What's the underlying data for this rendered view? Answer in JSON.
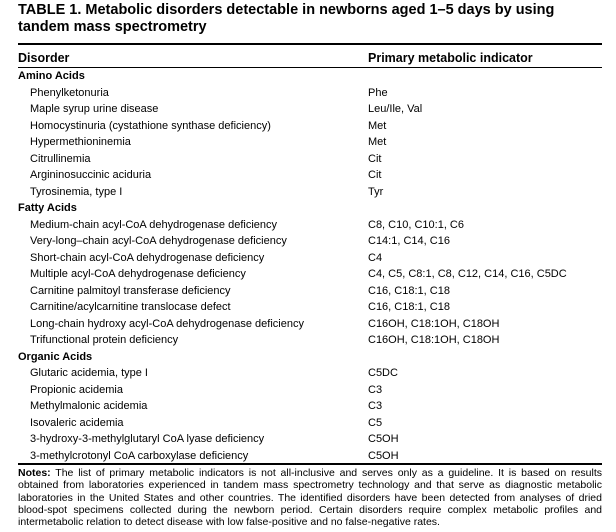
{
  "title": "TABLE 1. Metabolic disorders detectable in newborns aged 1–5 days by using tandem mass spectrometry",
  "columns": [
    "Disorder",
    "Primary metabolic indicator"
  ],
  "groups": [
    {
      "name": "Amino Acids",
      "rows": [
        [
          "Phenylketonuria",
          "Phe"
        ],
        [
          "Maple syrup urine disease",
          "Leu/Ile, Val"
        ],
        [
          "Homocystinuria (cystathione synthase deficiency)",
          "Met"
        ],
        [
          "Hypermethioninemia",
          "Met"
        ],
        [
          "Citrullinemia",
          "Cit"
        ],
        [
          "Argininosuccinic aciduria",
          "Cit"
        ],
        [
          "Tyrosinemia, type I",
          "Tyr"
        ]
      ]
    },
    {
      "name": "Fatty Acids",
      "rows": [
        [
          "Medium-chain acyl-CoA dehydrogenase deficiency",
          "C8, C10, C10:1, C6"
        ],
        [
          "Very-long–chain acyl-CoA dehydrogenase deficiency",
          "C14:1, C14, C16"
        ],
        [
          "Short-chain acyl-CoA dehydrogenase deficiency",
          "C4"
        ],
        [
          "Multiple acyl-CoA dehydrogenase deficiency",
          "C4, C5, C8:1, C8, C12, C14, C16, C5DC"
        ],
        [
          "Carnitine palmitoyl transferase deficiency",
          "C16, C18:1, C18"
        ],
        [
          "Carnitine/acylcarnitine translocase defect",
          "C16, C18:1, C18"
        ],
        [
          "Long-chain hydroxy acyl-CoA dehydrogenase deficiency",
          "C16OH, C18:1OH, C18OH"
        ],
        [
          "Trifunctional protein deficiency",
          "C16OH, C18:1OH, C18OH"
        ]
      ]
    },
    {
      "name": "Organic Acids",
      "rows": [
        [
          "Glutaric acidemia, type I",
          "C5DC"
        ],
        [
          "Propionic acidemia",
          "C3"
        ],
        [
          "Methylmalonic acidemia",
          "C3"
        ],
        [
          "Isovaleric acidemia",
          "C5"
        ],
        [
          "3-hydroxy-3-methylglutaryl CoA lyase deficiency",
          "C5OH"
        ],
        [
          "3-methylcrotonyl CoA carboxylase deficiency",
          "C5OH"
        ]
      ]
    }
  ],
  "notes": {
    "label": "Notes:",
    "text": "The list of primary metabolic indicators is not all-inclusive and serves only as a guideline. It is based on results obtained from laboratories experienced in tandem mass spectrometry technology and that serve as diagnostic metabolic laboratories in the United States and other countries. The identified disorders have been detected from analyses of dried blood-spot specimens collected during the newborn period. Certain disorders require complex metabolic profiles and intermetabolic relation to detect disease with low false-positive and no false-negative rates."
  }
}
